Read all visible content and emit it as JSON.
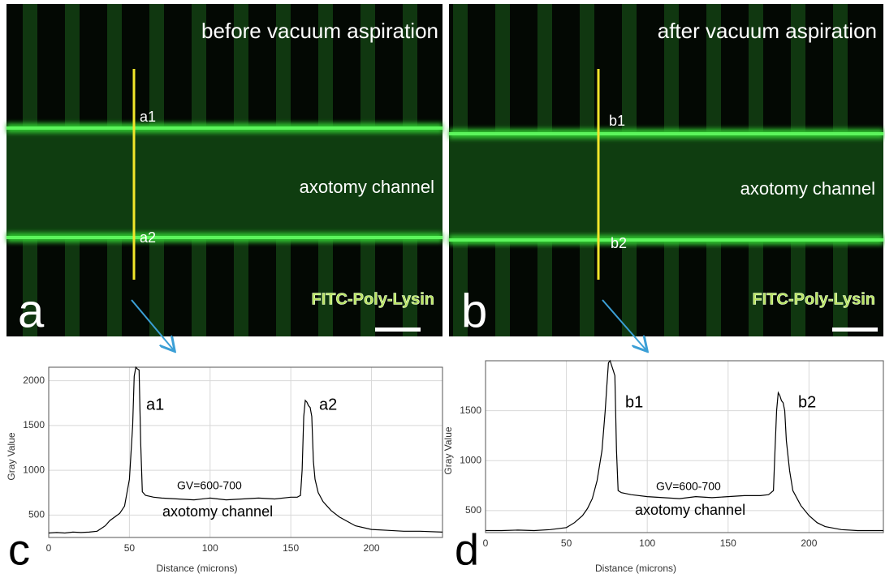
{
  "panels": [
    {
      "title": "before vacuum aspiration",
      "labels": [
        "a1",
        "a2"
      ],
      "channel": "axotomy channel",
      "stain": "FITC-Poly-Lysin",
      "letter": "a"
    },
    {
      "title": "after vacuum aspiration",
      "labels": [
        "b1",
        "b2"
      ],
      "channel": "axotomy channel",
      "stain": "FITC-Poly-Lysin",
      "letter": "b"
    }
  ],
  "chart_data": [
    {
      "type": "line",
      "letter": "c",
      "x_label": "Distance (microns)",
      "y_label": "Gray Value",
      "annotations": [
        "a1",
        "a2",
        "GV=600-700",
        "axotomy channel"
      ],
      "color": "#000000",
      "grid": true,
      "x": [
        0,
        5,
        10,
        15,
        20,
        25,
        30,
        35,
        38,
        41,
        44,
        47,
        50,
        52,
        53,
        54,
        55,
        56,
        57,
        58,
        60,
        65,
        70,
        80,
        90,
        100,
        110,
        120,
        130,
        140,
        150,
        154,
        156,
        157,
        158,
        159,
        160,
        161,
        162,
        163,
        164,
        165,
        167,
        170,
        175,
        180,
        185,
        190,
        200,
        210,
        220,
        230,
        244
      ],
      "values": [
        300,
        305,
        300,
        310,
        305,
        310,
        320,
        380,
        440,
        480,
        520,
        600,
        900,
        1500,
        2050,
        2150,
        2130,
        2120,
        1300,
        760,
        720,
        700,
        690,
        680,
        670,
        690,
        670,
        680,
        690,
        680,
        700,
        700,
        720,
        1000,
        1600,
        1780,
        1760,
        1720,
        1700,
        1600,
        1100,
        900,
        750,
        650,
        550,
        480,
        430,
        380,
        340,
        330,
        320,
        320,
        310
      ],
      "xlim": [
        0,
        244
      ],
      "ylim": [
        250,
        2150
      ],
      "xticks": [
        0,
        50,
        100,
        150,
        200
      ],
      "yticks": [
        500,
        1000,
        1500,
        2000
      ]
    },
    {
      "type": "line",
      "letter": "d",
      "x_label": "Distance (microns)",
      "y_label": "Gray Value",
      "annotations": [
        "b1",
        "b2",
        "GV=600-700",
        "axotomy channel"
      ],
      "color": "#000000",
      "grid": true,
      "x": [
        0,
        10,
        20,
        30,
        40,
        50,
        55,
        60,
        63,
        66,
        69,
        72,
        74,
        75,
        76,
        77,
        78,
        79,
        80,
        81,
        82,
        84,
        90,
        100,
        110,
        120,
        130,
        140,
        150,
        160,
        170,
        175,
        178,
        179,
        180,
        181,
        182,
        183,
        184,
        185,
        186,
        188,
        190,
        195,
        200,
        205,
        210,
        220,
        230,
        246
      ],
      "values": [
        300,
        300,
        305,
        300,
        310,
        330,
        380,
        450,
        520,
        620,
        800,
        1100,
        1500,
        1750,
        1980,
        2000,
        1950,
        1900,
        1850,
        1100,
        700,
        680,
        660,
        640,
        630,
        620,
        640,
        630,
        640,
        650,
        650,
        660,
        700,
        1100,
        1500,
        1680,
        1650,
        1600,
        1580,
        1500,
        1200,
        900,
        700,
        550,
        450,
        380,
        340,
        310,
        300,
        300
      ],
      "xlim": [
        0,
        246
      ],
      "ylim": [
        280,
        2000
      ],
      "xticks": [
        0,
        50,
        100,
        150,
        200
      ],
      "yticks": [
        500,
        1000,
        1500
      ]
    }
  ]
}
